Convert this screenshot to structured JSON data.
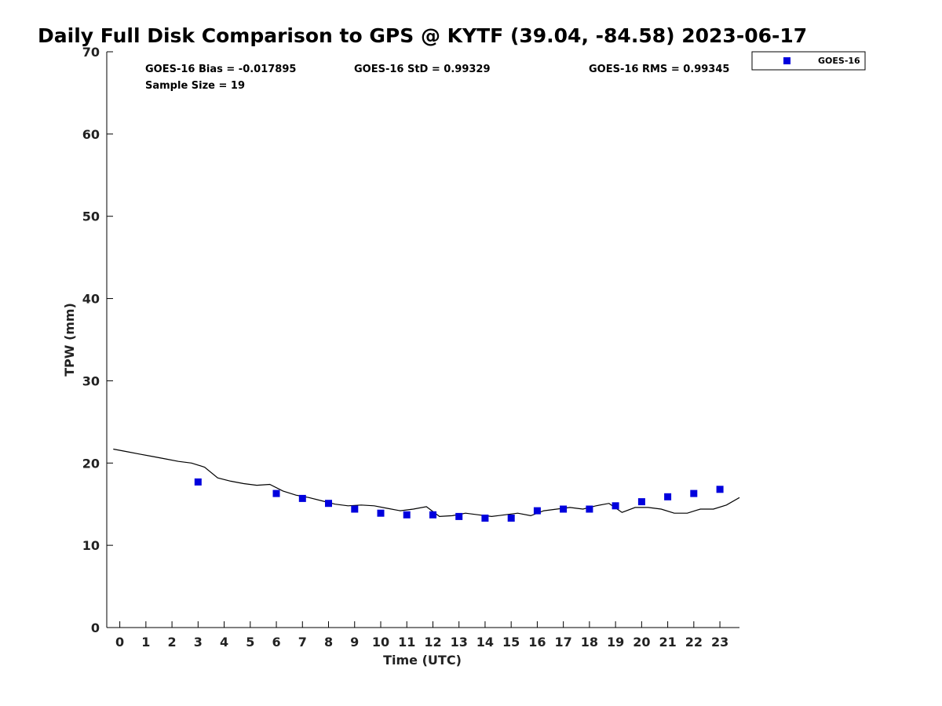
{
  "chart_data": {
    "type": "scatter",
    "title": "Daily Full Disk Comparison to GPS @ KYTF (39.04, -84.58) 2023-06-17",
    "xlabel": "Time (UTC)",
    "ylabel": "TPW (mm)",
    "xlim": [
      -0.5,
      23.75
    ],
    "ylim": [
      0,
      70
    ],
    "x_ticks": [
      0,
      1,
      2,
      3,
      4,
      5,
      6,
      7,
      8,
      9,
      10,
      11,
      12,
      13,
      14,
      15,
      16,
      17,
      18,
      19,
      20,
      21,
      22,
      23
    ],
    "y_ticks": [
      0,
      10,
      20,
      30,
      40,
      50,
      60,
      70
    ],
    "grid": false,
    "legend_position": "outside-top-right",
    "stats": {
      "bias": "GOES-16 Bias = -0.017895",
      "std": "GOES-16 StD = 0.99329",
      "rms": "GOES-16 RMS = 0.99345",
      "sample_size": "Sample Size = 19"
    },
    "series": [
      {
        "name": "GOES-16",
        "type": "scatter",
        "marker": "square",
        "color": "#0000dd",
        "x": [
          3,
          6,
          7,
          8,
          9,
          10,
          11,
          12,
          13,
          14,
          15,
          16,
          17,
          18,
          19,
          20,
          21,
          22,
          23
        ],
        "y": [
          17.7,
          16.3,
          15.7,
          15.1,
          14.4,
          13.9,
          13.7,
          13.7,
          13.5,
          13.3,
          13.3,
          14.2,
          14.4,
          14.4,
          14.8,
          15.3,
          15.9,
          16.3,
          16.8
        ]
      },
      {
        "type": "line",
        "color": "#000000",
        "x": [
          -0.25,
          0.25,
          0.75,
          1.25,
          1.75,
          2.25,
          2.75,
          3.25,
          3.75,
          4.25,
          4.75,
          5.25,
          5.75,
          6.25,
          6.75,
          7.25,
          7.75,
          8.25,
          8.75,
          9.25,
          9.75,
          10.25,
          10.75,
          11.25,
          11.75,
          12.25,
          12.75,
          13.25,
          13.75,
          14.25,
          14.75,
          15.25,
          15.75,
          16.25,
          16.75,
          17.25,
          17.75,
          18.25,
          18.75,
          19.25,
          19.75,
          20.25,
          20.75,
          21.25,
          21.75,
          22.25,
          22.75,
          23.25,
          23.75
        ],
        "y": [
          21.7,
          21.4,
          21.1,
          20.8,
          20.5,
          20.2,
          20.0,
          19.5,
          18.2,
          17.8,
          17.5,
          17.3,
          17.4,
          16.6,
          16.1,
          15.8,
          15.4,
          15.0,
          14.8,
          14.9,
          14.8,
          14.5,
          14.2,
          14.4,
          14.7,
          13.5,
          13.6,
          13.9,
          13.7,
          13.5,
          13.7,
          13.9,
          13.6,
          14.2,
          14.4,
          14.6,
          14.4,
          14.8,
          15.1,
          14.0,
          14.6,
          14.6,
          14.4,
          13.9,
          13.9,
          14.4,
          14.4,
          14.9,
          15.8
        ]
      }
    ]
  }
}
